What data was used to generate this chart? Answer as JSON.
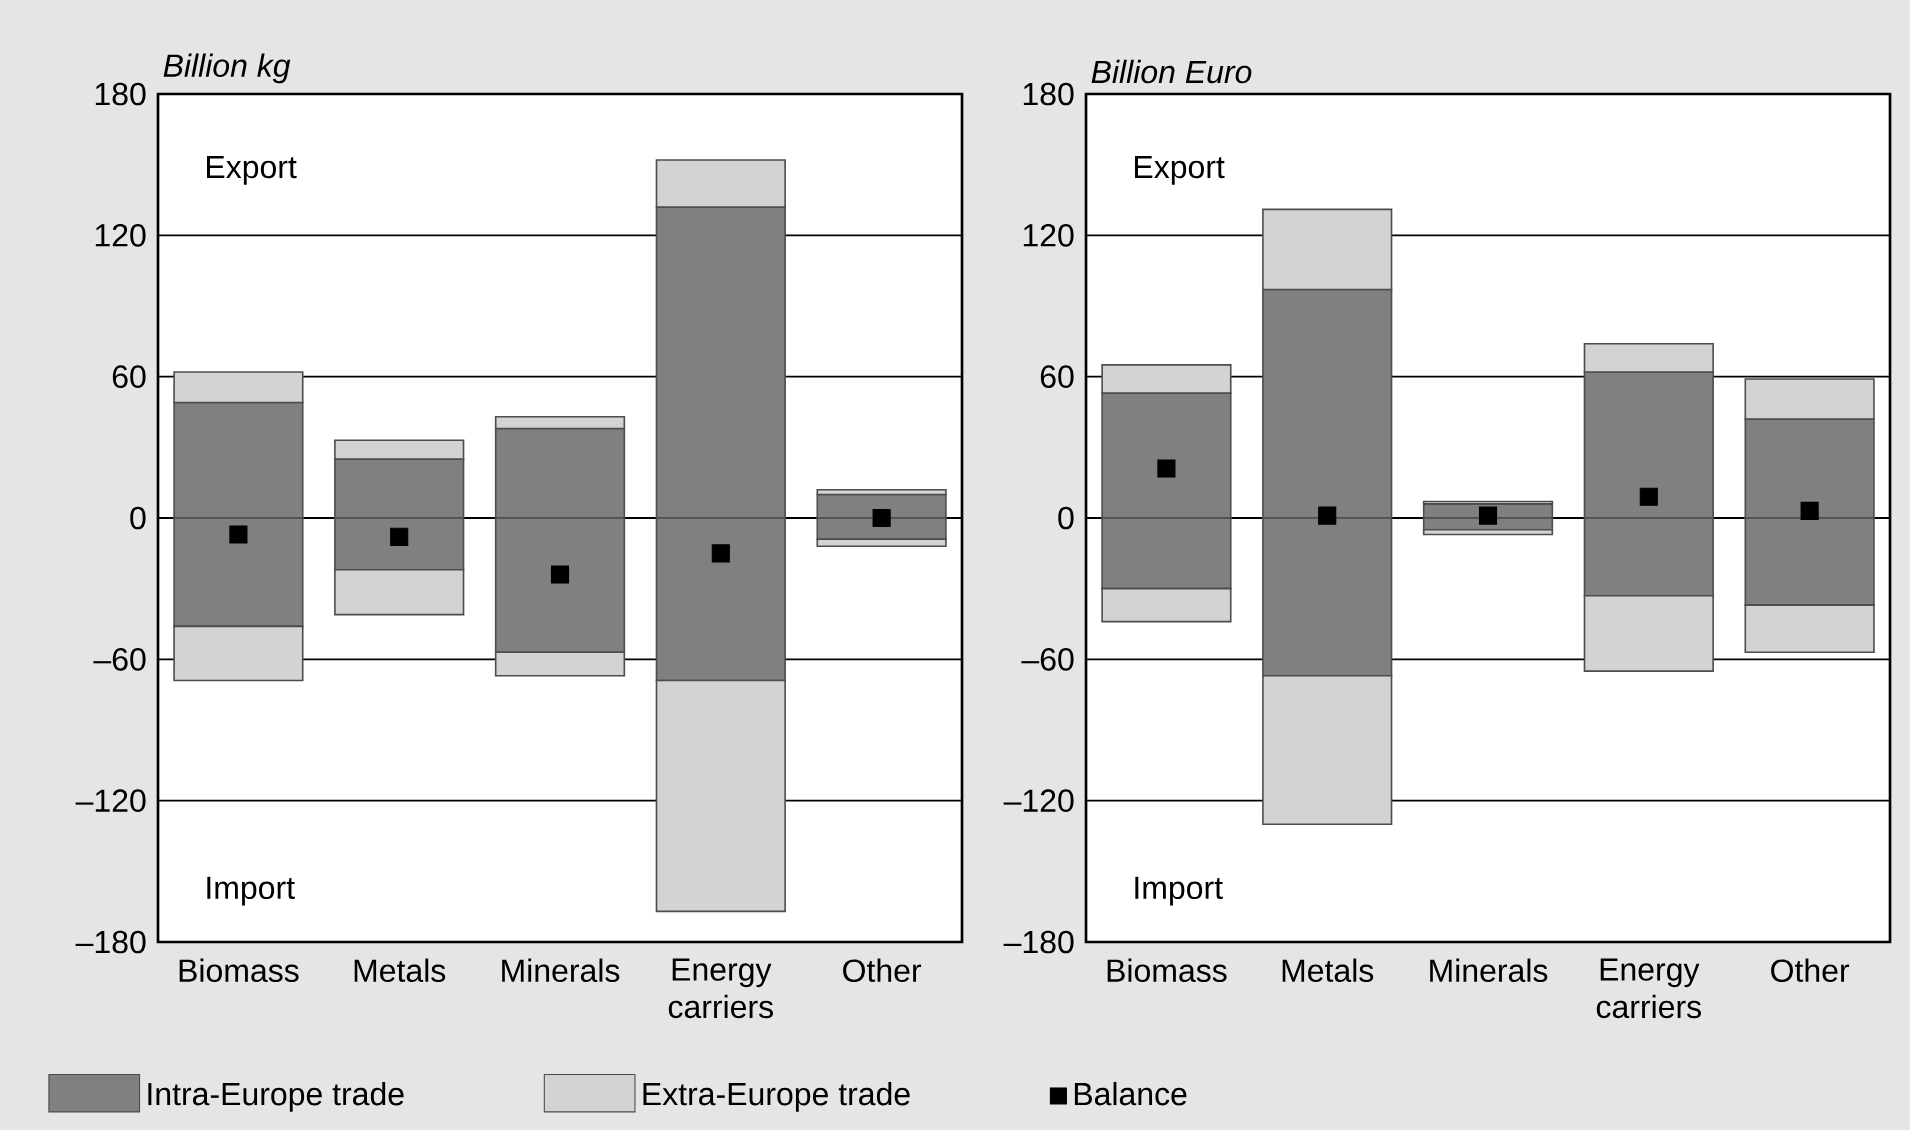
{
  "chart_data": [
    {
      "type": "bar",
      "stacked": true,
      "ylabel": "Billion kg",
      "categories": [
        "Biomass",
        "Metals",
        "Minerals",
        "Energy carriers",
        "Other"
      ],
      "series": [
        {
          "name": "Intra-Europe trade",
          "color": "#808080",
          "values": [
            49,
            25,
            38,
            132,
            10
          ]
        },
        {
          "color": "#808080",
          "values": [
            -46,
            -22,
            -57,
            -69,
            -9
          ]
        },
        {
          "name": "Extra-Europe trade",
          "color": "#d2d3d5",
          "values": [
            13,
            8,
            5,
            20,
            2
          ]
        },
        {
          "color": "#d2d3d5",
          "values": [
            -23,
            -19,
            -10,
            -98,
            -3
          ]
        },
        {
          "name": "Balance",
          "type": "scatter",
          "marker": "square",
          "color": "#000000",
          "values": [
            -7,
            -8,
            -24,
            -15,
            0
          ]
        }
      ],
      "ylim": [
        -180,
        180
      ],
      "yticks": [
        {
          "value": -180,
          "label": "–180"
        },
        {
          "value": -120,
          "label": "–120"
        },
        {
          "value": -60,
          "label": "–60"
        },
        0,
        60,
        120,
        180
      ],
      "grid": "y",
      "legend": "bottom",
      "annotations": [
        "Export",
        "Import"
      ]
    },
    {
      "type": "bar",
      "stacked": true,
      "ylabel": "Billion Euro",
      "categories": [
        "Biomass",
        "Metals",
        "Minerals",
        "Energy carriers",
        "Other"
      ],
      "series": [
        {
          "color": "#808080",
          "values": [
            53,
            97,
            6,
            62,
            42
          ]
        },
        {
          "color": "#808080",
          "values": [
            -30,
            -67,
            -5,
            -33,
            -37
          ]
        },
        {
          "color": "#d2d3d5",
          "values": [
            12,
            34,
            1,
            12,
            17
          ]
        },
        {
          "color": "#d2d3d5",
          "values": [
            -14,
            -63,
            -2,
            -32,
            -20
          ]
        },
        {
          "type": "scatter",
          "marker": "square",
          "color": "#000000",
          "values": [
            21,
            1,
            1,
            9,
            3
          ]
        }
      ],
      "ylim": [
        -180,
        180
      ],
      "yticks": [
        {
          "value": -180,
          "label": "–180"
        },
        {
          "value": -120,
          "label": "–120"
        },
        {
          "value": -60,
          "label": "–60"
        },
        0,
        60,
        120,
        180
      ],
      "grid": "y",
      "annotations": [
        "Export",
        "Import"
      ]
    }
  ]
}
